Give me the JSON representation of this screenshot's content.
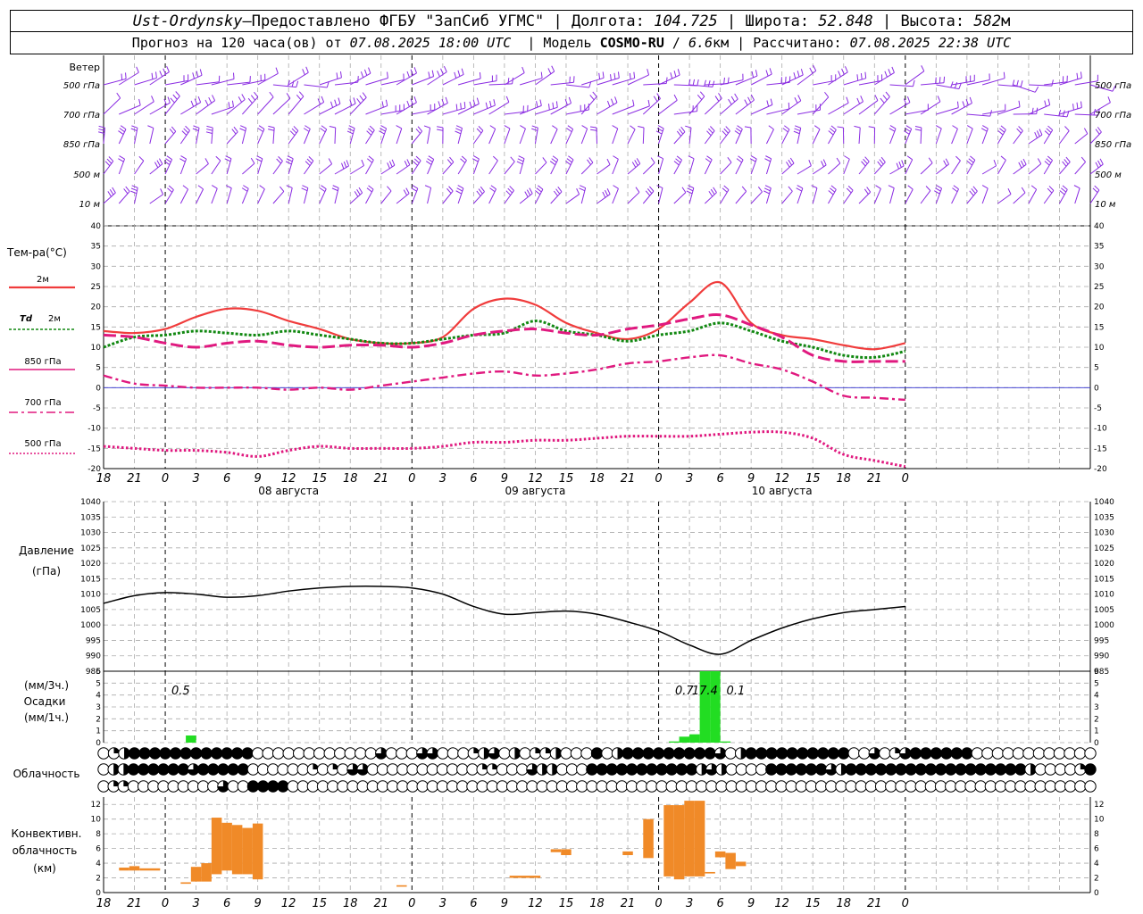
{
  "header": {
    "station": "Ust-Ordynsky",
    "dash": " — ",
    "provider": "Предоставлено ФГБУ \"ЗапСиб УГМС\"",
    "lon_label": "Долгота:",
    "lon": "104.725",
    "lat_label": "Широта:",
    "lat": "52.848",
    "alt_label": "Высота:",
    "alt": "582",
    "alt_unit": "м",
    "forecast_prefix": "Прогноз на 120 часа(ов) от",
    "forecast_from": "07.08.2025 18:00 UTC",
    "model_label": "Модель",
    "model": "COSMO-RU",
    "model_res": "6.6",
    "model_res_unit": "км",
    "calc_label": "Рассчитано:",
    "calc_time": "07.08.2025 22:38 UTC"
  },
  "labels": {
    "wind": "Ветер",
    "levels": [
      "500 гПа",
      "700 гПа",
      "850 гПа",
      "500 м",
      "10  м"
    ],
    "temp": "Тем-ра(°C)",
    "t2m": "2м",
    "td": "Td",
    "td2": "2м",
    "t850": "850 гПа",
    "t700": "700 гПа",
    "t500": "500 гПа",
    "pressure": "Давление",
    "pressure_unit": "(гПа)",
    "precip_top": "(мм/3ч.)",
    "precip": "Осадки",
    "precip_bottom": "(мм/1ч.)",
    "cloud": "Облачность",
    "conv1": "Конвективн.",
    "conv2": "облачность",
    "conv3": "(км)"
  },
  "colors": {
    "wind": "#8a2be2",
    "t2m": "#f03c3c",
    "td": "#118811",
    "t850": "#e0197f",
    "t700": "#e0197f",
    "t500": "#e0197f",
    "zero": "#3030d0",
    "pressure": "#000000",
    "precip": "#22dd22",
    "conv": "#f08a28",
    "grid": "#aaaaaa"
  },
  "chart_data": [
    {
      "type": "line",
      "title": "Тем-ра(°C)",
      "x_unit": "hour UTC",
      "x": [
        18,
        21,
        0,
        3,
        6,
        9,
        12,
        15,
        18,
        21,
        0,
        3,
        6,
        9,
        12,
        15,
        18,
        21,
        0,
        3,
        6,
        9,
        12,
        15,
        18,
        21,
        0
      ],
      "x_tick_labels": [
        "18",
        "21",
        "0",
        "3",
        "6",
        "9",
        "12",
        "15",
        "18",
        "21",
        "0",
        "3",
        "6",
        "9",
        "12",
        "15",
        "18",
        "21",
        "0",
        "3",
        "6",
        "9",
        "12",
        "15",
        "18",
        "21",
        "0"
      ],
      "date_labels": [
        "08 августа",
        "09 августа",
        "10 августа"
      ],
      "ylim": [
        -20,
        40
      ],
      "y_ticks": [
        -20,
        -15,
        -10,
        -5,
        0,
        5,
        10,
        15,
        20,
        25,
        30,
        35,
        40
      ],
      "series": [
        {
          "name": "2м",
          "style": "solid",
          "values": [
            14,
            13.5,
            14.5,
            17.5,
            19.5,
            19,
            16.5,
            14.5,
            12,
            11,
            11,
            12.5,
            19.5,
            22,
            20.5,
            16,
            13.5,
            12,
            14.5,
            21,
            26,
            16,
            13,
            12,
            10.5,
            9.5,
            11
          ]
        },
        {
          "name": "Td 2м",
          "style": "dotted",
          "values": [
            10,
            12.5,
            13,
            14,
            13.5,
            13,
            14,
            13,
            12,
            11,
            11,
            12,
            13,
            13.5,
            16.5,
            14,
            13,
            11.5,
            13,
            14,
            16,
            14,
            11.5,
            10,
            8,
            7.5,
            9
          ]
        },
        {
          "name": "850 гПа",
          "style": "dash",
          "values": [
            13,
            12.5,
            11,
            10,
            11,
            11.5,
            10.5,
            10,
            10.5,
            10.5,
            10,
            11,
            13,
            14,
            14.5,
            13.5,
            13,
            14.5,
            15.5,
            17,
            18,
            15.5,
            12.5,
            8,
            6.5,
            6.5,
            6.5
          ]
        },
        {
          "name": "700 гПа",
          "style": "dashdot",
          "values": [
            3,
            1,
            0.5,
            0,
            0,
            0,
            -0.5,
            0,
            -0.5,
            0.5,
            1.5,
            2.5,
            3.5,
            4,
            3,
            3.5,
            4.5,
            6,
            6.5,
            7.5,
            8,
            6,
            4.5,
            1.5,
            -2,
            -2.5,
            -3
          ]
        },
        {
          "name": "500 гПа",
          "style": "dots",
          "values": [
            -14.5,
            -15,
            -15.5,
            -15.5,
            -16,
            -17,
            -15.5,
            -14.5,
            -15,
            -15,
            -15,
            -14.5,
            -13.5,
            -13.5,
            -13,
            -13,
            -12.5,
            -12,
            -12,
            -12,
            -11.5,
            -11,
            -11,
            -12.5,
            -16.5,
            -18,
            -19.5
          ]
        }
      ]
    },
    {
      "type": "line",
      "title": "Давление",
      "ylabel": "(гПа)",
      "ylim": [
        985,
        1040
      ],
      "y_ticks": [
        985,
        990,
        995,
        1000,
        1005,
        1010,
        1015,
        1020,
        1025,
        1030,
        1035,
        1040
      ],
      "series": [
        {
          "name": "Давление",
          "values": [
            1007,
            1009.5,
            1010.5,
            1010,
            1009,
            1009.5,
            1011,
            1012,
            1012.5,
            1012.5,
            1012,
            1010,
            1006,
            1003.5,
            1004,
            1004.5,
            1003.5,
            1001,
            998,
            993.5,
            990.5,
            995,
            999,
            1002,
            1004,
            1005,
            1006
          ]
        }
      ]
    },
    {
      "type": "bar",
      "title": "Осадки",
      "ylabel": "(мм/1ч.)",
      "ylim": [
        0,
        6
      ],
      "y_ticks": [
        0,
        1,
        2,
        3,
        4,
        5,
        6
      ],
      "bars": [
        {
          "x": 8.5,
          "value": 0.6
        },
        {
          "x": 55.5,
          "value": 0.1
        },
        {
          "x": 56.5,
          "value": 0.5
        },
        {
          "x": 57.5,
          "value": 0.7
        },
        {
          "x": 58.5,
          "value": 6
        },
        {
          "x": 59.5,
          "value": 6
        },
        {
          "x": 60.5,
          "value": 0.1
        }
      ],
      "annotations": [
        {
          "x": 7.5,
          "text": "0.5"
        },
        {
          "x": 56.5,
          "text": "0.7"
        },
        {
          "x": 58.5,
          "text": "17.4"
        },
        {
          "x": 61.5,
          "text": "0.1"
        }
      ]
    },
    {
      "type": "bar",
      "title": "Конвективн. облачность",
      "ylabel": "(км)",
      "ylim": [
        0,
        13
      ],
      "y_ticks": [
        0,
        2,
        4,
        6,
        8,
        10,
        12
      ],
      "bars": [
        {
          "x0": 1.5,
          "x1": 2.5,
          "low": 3,
          "high": 3.4
        },
        {
          "x0": 2.5,
          "x1": 3.5,
          "low": 3,
          "high": 3.6
        },
        {
          "x0": 3.5,
          "x1": 5.5,
          "low": 3,
          "high": 3.3
        },
        {
          "x0": 7.5,
          "x1": 8.5,
          "low": 1.2,
          "high": 1.4
        },
        {
          "x0": 8.5,
          "x1": 9.5,
          "low": 1.5,
          "high": 3.5
        },
        {
          "x0": 9.5,
          "x1": 10.5,
          "low": 1.5,
          "high": 4
        },
        {
          "x0": 10.5,
          "x1": 11.5,
          "low": 2.5,
          "high": 10.2
        },
        {
          "x0": 11.5,
          "x1": 12.5,
          "low": 3,
          "high": 9.5
        },
        {
          "x0": 12.5,
          "x1": 13.5,
          "low": 2.5,
          "high": 9.2
        },
        {
          "x0": 13.5,
          "x1": 14.5,
          "low": 2.5,
          "high": 8.8
        },
        {
          "x0": 14.5,
          "x1": 15.5,
          "low": 1.8,
          "high": 9.4
        },
        {
          "x0": 28.5,
          "x1": 29.5,
          "low": 0.8,
          "high": 1
        },
        {
          "x0": 39.5,
          "x1": 42.5,
          "low": 2,
          "high": 2.3
        },
        {
          "x0": 43.5,
          "x1": 44.5,
          "low": 5.5,
          "high": 5.9
        },
        {
          "x0": 44.5,
          "x1": 45.5,
          "low": 5.1,
          "high": 5.9
        },
        {
          "x0": 50.5,
          "x1": 51.5,
          "low": 5.1,
          "high": 5.6
        },
        {
          "x0": 52.5,
          "x1": 53.5,
          "low": 4.7,
          "high": 10
        },
        {
          "x0": 54.5,
          "x1": 55.5,
          "low": 2.2,
          "high": 11.9
        },
        {
          "x0": 55.5,
          "x1": 56.5,
          "low": 1.8,
          "high": 11.9
        },
        {
          "x0": 56.5,
          "x1": 57.5,
          "low": 2.2,
          "high": 12.5
        },
        {
          "x0": 57.5,
          "x1": 58.5,
          "low": 2.2,
          "high": 12.5
        },
        {
          "x0": 58.5,
          "x1": 59.5,
          "low": 2.6,
          "high": 2.8
        },
        {
          "x0": 59.5,
          "x1": 60.5,
          "low": 4.8,
          "high": 5.6
        },
        {
          "x0": 60.5,
          "x1": 61.5,
          "low": 3.2,
          "high": 5.4
        },
        {
          "x0": 61.5,
          "x1": 62.5,
          "low": 3.6,
          "high": 4.2
        }
      ]
    },
    {
      "type": "table",
      "title": "Облачность",
      "encoding": "0 clear .. 4 overcast",
      "rows": [
        [
          0,
          1,
          2,
          4,
          4,
          4,
          4,
          4,
          4,
          4,
          4,
          4,
          4,
          4,
          4,
          0,
          0,
          0,
          0,
          0,
          0,
          0,
          0,
          0,
          0,
          0,
          0,
          3,
          0,
          0,
          0,
          3,
          3,
          0,
          0,
          0,
          1,
          2,
          3,
          0,
          2,
          0,
          1,
          1,
          2,
          0,
          0,
          0,
          4,
          0,
          2,
          4,
          4,
          4,
          4,
          4,
          4,
          4,
          4,
          4,
          3,
          0,
          2,
          4,
          4,
          4,
          4,
          4,
          4,
          4,
          4,
          4,
          4,
          0,
          0,
          3,
          0,
          1,
          3,
          4,
          4,
          4,
          4,
          4,
          4,
          0,
          0,
          0,
          0,
          0,
          0,
          0,
          0,
          0,
          0,
          0,
          0
        ],
        [
          0,
          2,
          2,
          4,
          4,
          4,
          4,
          4,
          4,
          3,
          4,
          4,
          4,
          4,
          4,
          0,
          0,
          0,
          0,
          0,
          0,
          1,
          0,
          1,
          0,
          3,
          3,
          0,
          0,
          0,
          0,
          0,
          0,
          0,
          0,
          0,
          0,
          0,
          1,
          1,
          0,
          0,
          0,
          3,
          2,
          2,
          0,
          0,
          0,
          4,
          4,
          4,
          4,
          4,
          4,
          4,
          4,
          4,
          4,
          4,
          2,
          3,
          2,
          0,
          0,
          0,
          0,
          4,
          4,
          4,
          4,
          4,
          4,
          3,
          2,
          4,
          4,
          4,
          4,
          4,
          4,
          4,
          4,
          4,
          4,
          4,
          4,
          4,
          4,
          4,
          4,
          4,
          4,
          2,
          0,
          0,
          0,
          0,
          1,
          4
        ],
        [
          0,
          1,
          1,
          0,
          0,
          0,
          0,
          0,
          0,
          0,
          0,
          0,
          3,
          0,
          0,
          4,
          4,
          4,
          4,
          0,
          0,
          0,
          0,
          0,
          0,
          0,
          0,
          0,
          0,
          0,
          0,
          0,
          0,
          0,
          0,
          0,
          0,
          0,
          0,
          0,
          0,
          0,
          0,
          0,
          0,
          0,
          0,
          0,
          0,
          0,
          0,
          0,
          0,
          0,
          0,
          0,
          0,
          0,
          0,
          0,
          0,
          0,
          0,
          0,
          0,
          0,
          0,
          0,
          0,
          0,
          0,
          0,
          0,
          0,
          0,
          0,
          0,
          0,
          0,
          0,
          0,
          0,
          0,
          0,
          0,
          0,
          0,
          0,
          0,
          0,
          0,
          0,
          0,
          0,
          0,
          0,
          0,
          0,
          0,
          0
        ]
      ]
    }
  ]
}
